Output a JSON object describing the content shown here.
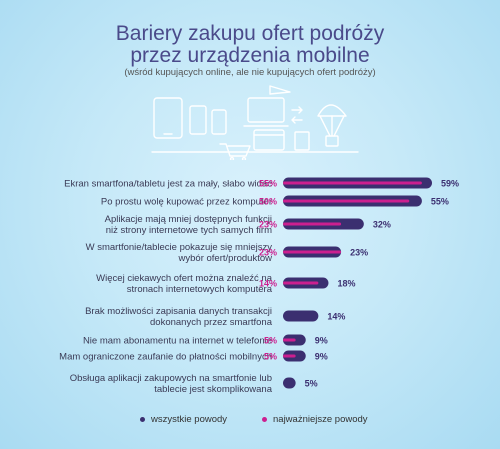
{
  "title_line1": "Bariery zakupu ofert podróży",
  "title_line2": "przez urządzenia mobilne",
  "subtitle": "(wśród kupujących online, ale nie kupujących ofert podróży)",
  "colors": {
    "all": "#3b2f70",
    "important": "#cc1f8f",
    "title": "#4a4a8a"
  },
  "legend": {
    "all": "wszystkie powody",
    "important": "najważniejsze powody"
  },
  "chart_data": {
    "type": "bar",
    "orientation": "horizontal",
    "categories": [
      [
        "Ekran smartfona/tabletu jest za mały, słabo widać"
      ],
      [
        "Po prostu wolę kupować przez komputer"
      ],
      [
        "Aplikacje mają mniej dostępnych funkcji",
        "niż strony internetowe tych samych firm"
      ],
      [
        "W smartfonie/tablecie pokazuje się mniejszy",
        "wybór ofert/produktów"
      ],
      [
        "Więcej ciekawych ofert można znaleźć na",
        "stronach internetowych komputera"
      ],
      [
        "Brak możliwości zapisania danych transakcji",
        "dokonanych przez smartfona"
      ],
      [
        "Nie mam abonamentu na internet w telefonie"
      ],
      [
        "Mam ograniczone zaufanie do płatności mobilnych"
      ],
      [
        "Obsługa aplikacji zakupowych na smartfonie lub",
        "tablecie jest skomplikowana"
      ]
    ],
    "series": [
      {
        "name": "wszystkie powody",
        "values": [
          59,
          55,
          32,
          23,
          18,
          14,
          9,
          9,
          5
        ],
        "labels": [
          "59%",
          "55%",
          "32%",
          "23%",
          "18%",
          "14%",
          "9%",
          "9%",
          "5%"
        ]
      },
      {
        "name": "najważniejsze powody",
        "values": [
          55,
          50,
          23,
          23,
          14,
          null,
          5,
          5,
          null
        ],
        "labels": [
          "55%",
          "50%",
          "23%",
          "23%",
          "14%",
          "",
          "5%",
          "5%",
          ""
        ]
      }
    ],
    "xlim": [
      0,
      59
    ],
    "grid": false,
    "legend_position": "bottom"
  }
}
